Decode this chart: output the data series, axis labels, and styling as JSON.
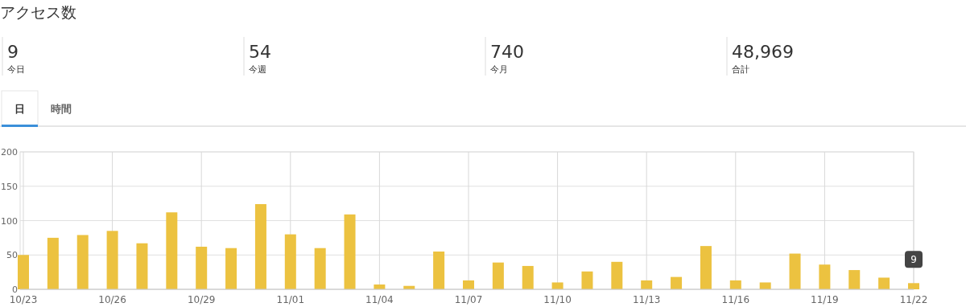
{
  "chart_data": [
    {
      "type": "other",
      "title": "アクセス数",
      "annotations": [
        "9",
        "今日",
        "54",
        "今週",
        "740",
        "今月",
        "48,969",
        "合計",
        "日",
        "時間"
      ]
    },
    {
      "type": "bar",
      "categories": [
        "10/23",
        null,
        null,
        "10/26",
        null,
        null,
        "10/29",
        null,
        null,
        "11/01",
        null,
        null,
        "11/04",
        null,
        null,
        "11/07",
        null,
        null,
        "11/10",
        null,
        null,
        "11/13",
        null,
        null,
        "11/16",
        null,
        null,
        "11/19",
        null,
        null,
        "11/22"
      ],
      "values": [
        50,
        75,
        79,
        85,
        67,
        112,
        62,
        60,
        124,
        80,
        60,
        109,
        7,
        5,
        55,
        13,
        39,
        34,
        10,
        26,
        40,
        13,
        18,
        63,
        13,
        10,
        52,
        36,
        28,
        17,
        9
      ],
      "color": "#ecc240",
      "ylim": [
        0,
        200
      ],
      "yticks": [
        0,
        50,
        100,
        150,
        200
      ],
      "grid": true,
      "annotations": [
        {
          "text": "9",
          "x": "11/22",
          "y": 9
        }
      ]
    }
  ]
}
